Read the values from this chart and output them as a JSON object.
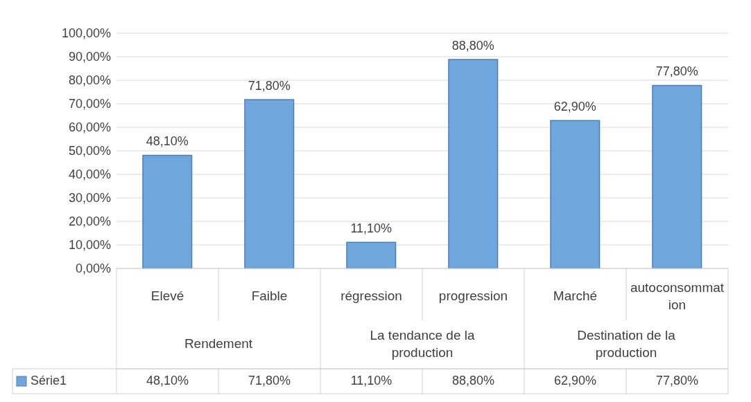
{
  "chart_data": {
    "type": "bar",
    "categories": [
      "Elevé",
      "Faible",
      "régression",
      "progression",
      "Marché",
      "autoconsommation"
    ],
    "series": [
      {
        "name": "Série1",
        "color": "#6fa6dc",
        "values": [
          48.1,
          71.8,
          11.1,
          88.8,
          62.9,
          77.8
        ],
        "value_labels": [
          "48,10%",
          "71,80%",
          "11,10%",
          "88,80%",
          "62,90%",
          "77,80%"
        ]
      }
    ],
    "annotations": [
      "Rendement",
      "La tendance de la production",
      "Destination de la production"
    ],
    "ylim": [
      0,
      100
    ],
    "yticks": [
      {
        "value": 0,
        "label": "0,00%"
      },
      {
        "value": 10,
        "label": "10,00%"
      },
      {
        "value": 20,
        "label": "20,00%"
      },
      {
        "value": 30,
        "label": "30,00%"
      },
      {
        "value": 40,
        "label": "40,00%"
      },
      {
        "value": 50,
        "label": "50,00%"
      },
      {
        "value": 60,
        "label": "60,00%"
      },
      {
        "value": 70,
        "label": "70,00%"
      },
      {
        "value": 80,
        "label": "80,00%"
      },
      {
        "value": 90,
        "label": "90,00%"
      },
      {
        "value": 100,
        "label": "100,00%"
      }
    ],
    "grid": "y",
    "legend": "bottom"
  }
}
